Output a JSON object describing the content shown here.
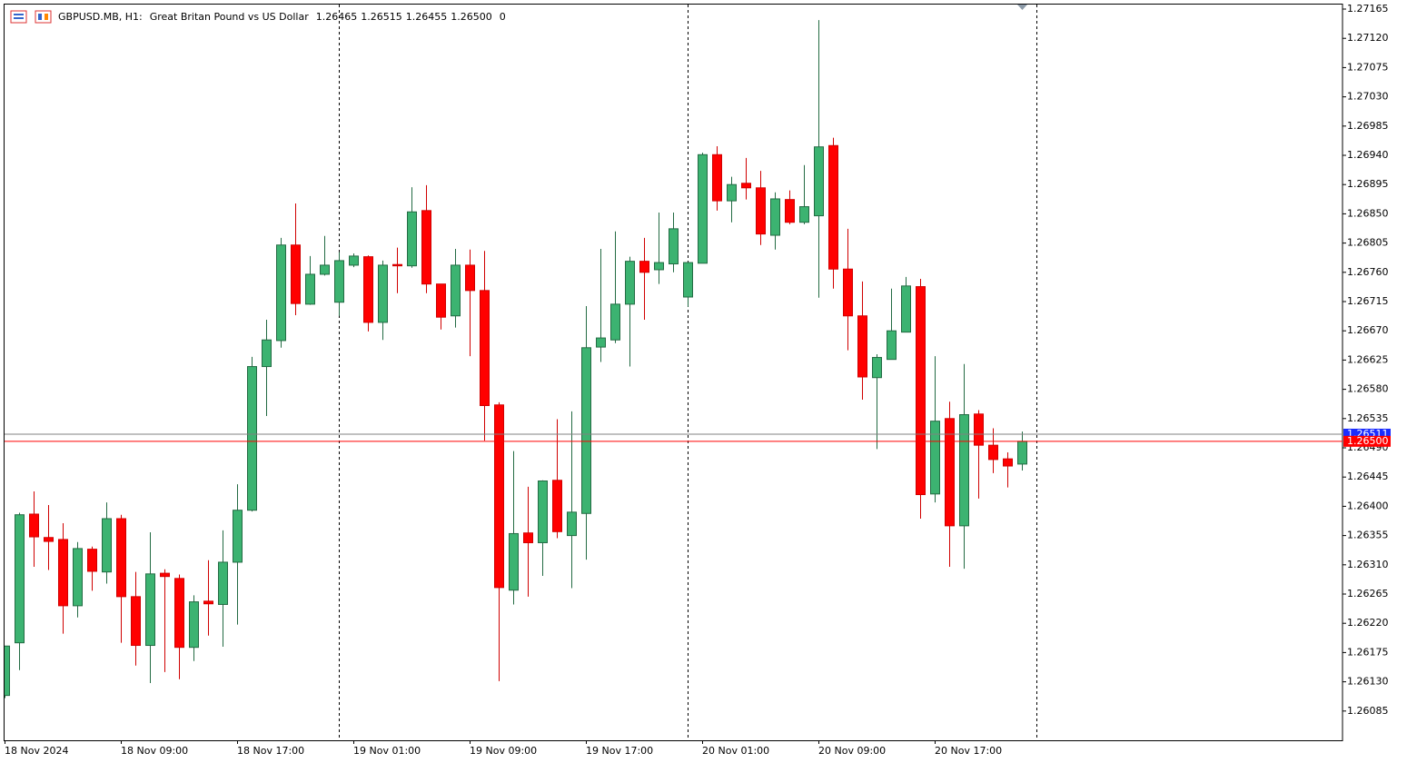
{
  "chart_data": {
    "type": "candlestick",
    "header": {
      "symbol": "GBPUSD.MB, H1:",
      "description": "Great Britan Pound vs US Dollar",
      "ohlc": [
        1.26465,
        1.26515,
        1.26455,
        {
          "value": 1.265,
          "label": "1.26500"
        }
      ],
      "volume": 0
    },
    "categories": [
      "18 Nov 2024",
      null,
      null,
      null,
      null,
      null,
      null,
      null,
      "18 Nov 09:00",
      null,
      null,
      null,
      null,
      null,
      null,
      null,
      "18 Nov 17:00",
      null,
      null,
      null,
      null,
      null,
      null,
      null,
      "19 Nov 01:00",
      null,
      null,
      null,
      null,
      null,
      null,
      null,
      "19 Nov 09:00",
      null,
      null,
      null,
      null,
      null,
      null,
      null,
      "19 Nov 17:00",
      null,
      null,
      null,
      null,
      null,
      null,
      null,
      "20 Nov 01:00",
      null,
      null,
      null,
      null,
      null,
      null,
      null,
      "20 Nov 09:00",
      null,
      null,
      null,
      null,
      null,
      null,
      null,
      "20 Nov 17:00",
      null,
      null,
      null,
      null,
      null,
      null
    ],
    "open": [
      1.26109,
      1.2619,
      1.26388,
      1.26352,
      1.26349,
      1.26247,
      1.26334,
      1.26299,
      1.26381,
      1.26261,
      1.26186,
      1.26297,
      1.26289,
      1.26183,
      1.26254,
      1.26249,
      1.26314,
      1.26394,
      1.26615,
      1.26655,
      1.26802,
      1.26711,
      1.26757,
      1.26714,
      1.26771,
      1.26784,
      1.26683,
      1.26772,
      1.2677,
      1.26855,
      1.26742,
      1.26693,
      1.26771,
      1.26732,
      1.26556,
      1.26271,
      1.26359,
      1.26344,
      1.2644,
      1.26355,
      1.26389,
      1.26645,
      1.26656,
      1.26711,
      1.26777,
      1.26764,
      1.26773,
      1.26722,
      1.26774,
      1.26941,
      1.2687,
      1.26897,
      1.2689,
      1.26817,
      1.26872,
      1.26837,
      1.26847,
      1.26955,
      1.26765,
      1.26693,
      1.26598,
      1.26626,
      1.26668,
      1.26738,
      1.26419,
      1.26535,
      1.2637,
      1.26542,
      1.26494,
      1.26473,
      1.26465
    ],
    "high": [
      1.26185,
      1.2639,
      1.26423,
      1.26402,
      1.26374,
      1.26345,
      1.26338,
      1.26406,
      1.26387,
      1.26299,
      1.2636,
      1.26303,
      1.26295,
      1.26263,
      1.26317,
      1.26363,
      1.26434,
      1.2663,
      1.26687,
      1.26813,
      1.26866,
      1.26785,
      1.26816,
      1.26791,
      1.26789,
      1.26786,
      1.26778,
      1.26798,
      1.26891,
      1.26894,
      1.26742,
      1.26796,
      1.26795,
      1.26793,
      1.2656,
      1.26485,
      1.2643,
      1.2644,
      1.26534,
      1.26546,
      1.26708,
      1.26796,
      1.26823,
      1.26784,
      1.26813,
      1.26852,
      1.26852,
      1.26775,
      1.26944,
      1.26954,
      1.26907,
      1.26936,
      1.26916,
      1.26883,
      1.26886,
      1.26925,
      1.27148,
      1.26967,
      1.26827,
      1.26746,
      1.26634,
      1.26735,
      1.26753,
      1.2675,
      1.26631,
      1.26561,
      1.26619,
      1.26548,
      1.2652,
      1.26483,
      1.26515
    ],
    "low": [
      1.26105,
      1.26148,
      1.26307,
      1.26302,
      1.26204,
      1.26229,
      1.2627,
      1.26281,
      1.2619,
      1.26155,
      1.26128,
      1.26145,
      1.26134,
      1.26162,
      1.26201,
      1.26184,
      1.26218,
      1.26392,
      1.26539,
      1.26644,
      1.26694,
      1.2671,
      1.26755,
      1.26693,
      1.26768,
      1.26669,
      1.26656,
      1.26728,
      1.26767,
      1.26728,
      1.26672,
      1.26675,
      1.26631,
      1.26501,
      1.26131,
      1.26249,
      1.26261,
      1.26293,
      1.26351,
      1.26274,
      1.26318,
      1.26622,
      1.26651,
      1.26615,
      1.26687,
      1.26742,
      1.2676,
      1.26707,
      1.26774,
      1.26855,
      1.26837,
      1.26872,
      1.26802,
      1.26795,
      1.26834,
      1.26834,
      1.26721,
      1.26735,
      1.2664,
      1.26564,
      1.26488,
      1.26626,
      1.26668,
      1.26381,
      1.26406,
      1.26307,
      1.26304,
      1.26412,
      1.26451,
      1.26429,
      1.26455
    ],
    "close": [
      1.26185,
      1.26387,
      1.26353,
      1.26346,
      1.26247,
      1.26335,
      1.263,
      1.26381,
      1.26261,
      1.26186,
      1.26296,
      1.26292,
      1.26183,
      1.26253,
      1.2625,
      1.26314,
      1.26394,
      1.26615,
      1.26656,
      1.26802,
      1.26712,
      1.26757,
      1.26771,
      1.26778,
      1.26785,
      1.26683,
      1.26771,
      1.2677,
      1.26853,
      1.26742,
      1.26691,
      1.26771,
      1.26732,
      1.26555,
      1.26275,
      1.26358,
      1.26344,
      1.26439,
      1.26361,
      1.26391,
      1.26644,
      1.26659,
      1.26711,
      1.26777,
      1.2676,
      1.26775,
      1.26827,
      1.26775,
      1.26941,
      1.2687,
      1.26895,
      1.2689,
      1.26819,
      1.26873,
      1.26837,
      1.26861,
      1.26953,
      1.26765,
      1.26693,
      1.26599,
      1.26629,
      1.2667,
      1.26739,
      1.26418,
      1.26531,
      1.2637,
      1.26541,
      1.26494,
      1.26472,
      1.26462,
      1.265
    ],
    "up_color": "#3cb371",
    "up_edge": "#236b43",
    "down_color": "#ff0000",
    "down_edge": "#d00000",
    "ylim": [
      1.2604,
      1.27172
    ],
    "yticks": [
      1.26085,
      {
        "value": 1.2613,
        "label": "1.26130"
      },
      1.26175,
      {
        "value": 1.2622,
        "label": "1.26220"
      },
      1.26265,
      {
        "value": 1.2631,
        "label": "1.26310"
      },
      1.26355,
      {
        "value": 1.264,
        "label": "1.26400"
      },
      1.26445,
      {
        "value": 1.2649,
        "label": "1.26490"
      },
      1.26535,
      {
        "value": 1.2658,
        "label": "1.26580"
      },
      1.26625,
      {
        "value": 1.2667,
        "label": "1.26670"
      },
      1.26715,
      {
        "value": 1.2676,
        "label": "1.26760"
      },
      1.26805,
      {
        "value": 1.2685,
        "label": "1.26850"
      },
      1.26895,
      {
        "value": 1.2694,
        "label": "1.26940"
      },
      1.26985,
      {
        "value": 1.2703,
        "label": "1.27030"
      },
      1.27075,
      {
        "value": 1.2712,
        "label": "1.27120"
      },
      1.27165
    ],
    "price_lines": [
      {
        "value": 1.26511,
        "line_color": "#808080",
        "label_color": "#1a2cff"
      },
      {
        "value": 1.265,
        "label": "1.26500",
        "line_color": "#ff0000",
        "label_color": "#ff0000"
      }
    ]
  }
}
